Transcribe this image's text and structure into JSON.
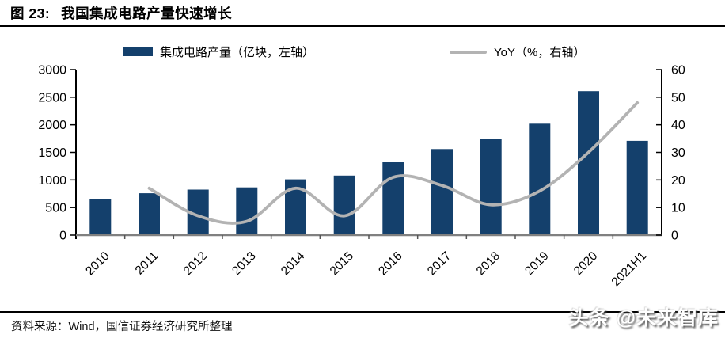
{
  "header": {
    "title_prefix": "图 23:",
    "title_text": "我国集成电路产量快速增长"
  },
  "legend": {
    "items": [
      {
        "label": "集成电路产量（亿块，左轴）",
        "swatch": "bar",
        "color": "#14406C"
      },
      {
        "label": "YoY（%，右轴）",
        "swatch": "line",
        "color": "#B3B3B3"
      }
    ]
  },
  "colors": {
    "bar": "#14406C",
    "line": "#B3B3B3",
    "axis": "#000000",
    "x_axis_line": "#808080",
    "text": "#000000"
  },
  "chart_data": {
    "type": "bar",
    "title": "我国集成电路产量快速增长",
    "categories": [
      "2010",
      "2011",
      "2012",
      "2013",
      "2014",
      "2015",
      "2016",
      "2017",
      "2018",
      "2019",
      "2020",
      "2021H1"
    ],
    "series": [
      {
        "name": "集成电路产量（亿块，左轴）",
        "type": "bar",
        "axis": "left",
        "color": "#14406C",
        "values": [
          650,
          760,
          825,
          865,
          1010,
          1080,
          1320,
          1560,
          1740,
          2020,
          2610,
          1710
        ]
      },
      {
        "name": "YoY（%，右轴）",
        "type": "line",
        "axis": "right",
        "color": "#B3B3B3",
        "values": [
          null,
          17,
          7,
          5,
          17,
          7,
          21,
          18,
          11,
          16,
          30,
          48
        ]
      }
    ],
    "left_axis": {
      "label": "亿块",
      "min": 0,
      "max": 3000,
      "step": 500,
      "ticks": [
        0,
        500,
        1000,
        1500,
        2000,
        2500,
        3000
      ]
    },
    "right_axis": {
      "label": "%",
      "min": 0,
      "max": 60,
      "step": 10,
      "ticks": [
        0,
        10,
        20,
        30,
        40,
        50,
        60
      ]
    },
    "legend_position": "top",
    "grid": false,
    "x_tick_rotation": -45
  },
  "footer": {
    "source": "资料来源：Wind，国信证券经济研究所整理"
  },
  "watermark": "头条 @未来智库"
}
